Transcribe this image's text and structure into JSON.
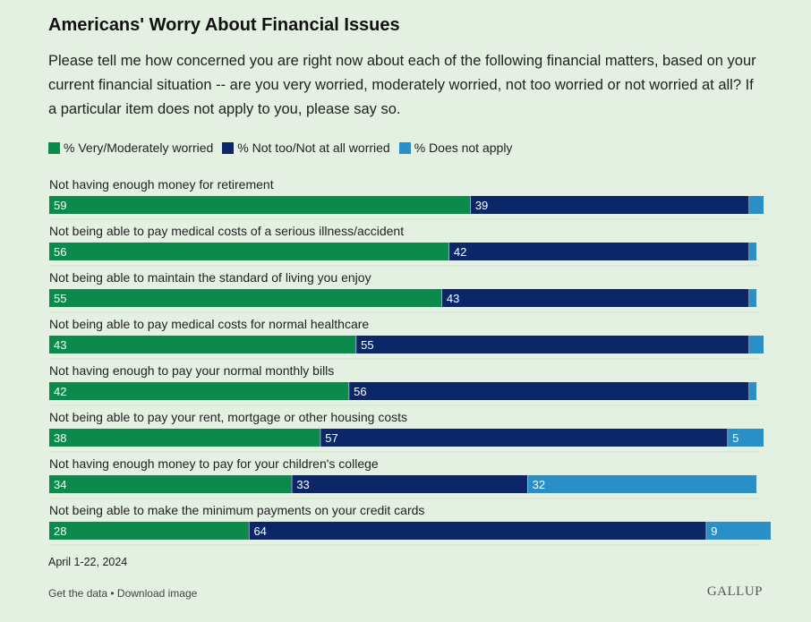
{
  "title": "Americans' Worry About Financial Issues",
  "subtitle": "Please tell me how concerned you are right now about each of the following financial matters, based on your current financial situation -- are you very worried, moderately worried, not too worried or not worried at all? If a particular item does not apply to you, please say so.",
  "legend": [
    {
      "label": "% Very/Moderately worried",
      "color": "#0b8a4c"
    },
    {
      "label": "% Not too/Not at all worried",
      "color": "#0b2768"
    },
    {
      "label": "% Does not apply",
      "color": "#2a8fc6"
    }
  ],
  "date": "April 1-22, 2024",
  "footer": {
    "get_data": "Get the data",
    "separator": " • ",
    "download": "Download image"
  },
  "brand": "GALLUP",
  "chart_data": {
    "type": "bar",
    "orientation": "horizontal",
    "stacked": true,
    "categories": [
      "Not having enough money for retirement",
      "Not being able to pay medical costs of a serious illness/accident",
      "Not being able to maintain the standard of living you enjoy",
      "Not being able to pay medical costs for normal healthcare",
      "Not having enough to pay your normal monthly bills",
      "Not being able to pay your rent, mortgage or other housing costs",
      "Not having enough money to pay for your children's college",
      "Not being able to make the minimum payments on your credit cards"
    ],
    "series": [
      {
        "name": "% Very/Moderately worried",
        "color": "#0b8a4c",
        "values": [
          59,
          56,
          55,
          43,
          42,
          38,
          34,
          28
        ],
        "labels": [
          "59",
          "56",
          "55",
          "43",
          "42",
          "38",
          "34",
          "28"
        ]
      },
      {
        "name": "% Not too/Not at all worried",
        "color": "#0b2768",
        "values": [
          39,
          42,
          43,
          55,
          56,
          57,
          33,
          64
        ],
        "labels": [
          "39",
          "42",
          "43",
          "55",
          "56",
          "57",
          "33",
          "64"
        ]
      },
      {
        "name": "% Does not apply",
        "color": "#2a8fc6",
        "values": [
          2,
          1,
          1,
          2,
          1,
          5,
          32,
          9
        ],
        "labels": [
          "",
          "",
          "",
          "",
          "",
          "5",
          "32",
          "9"
        ]
      }
    ],
    "xlim": [
      0,
      100
    ],
    "legend_position": "top-left",
    "grid": false
  }
}
